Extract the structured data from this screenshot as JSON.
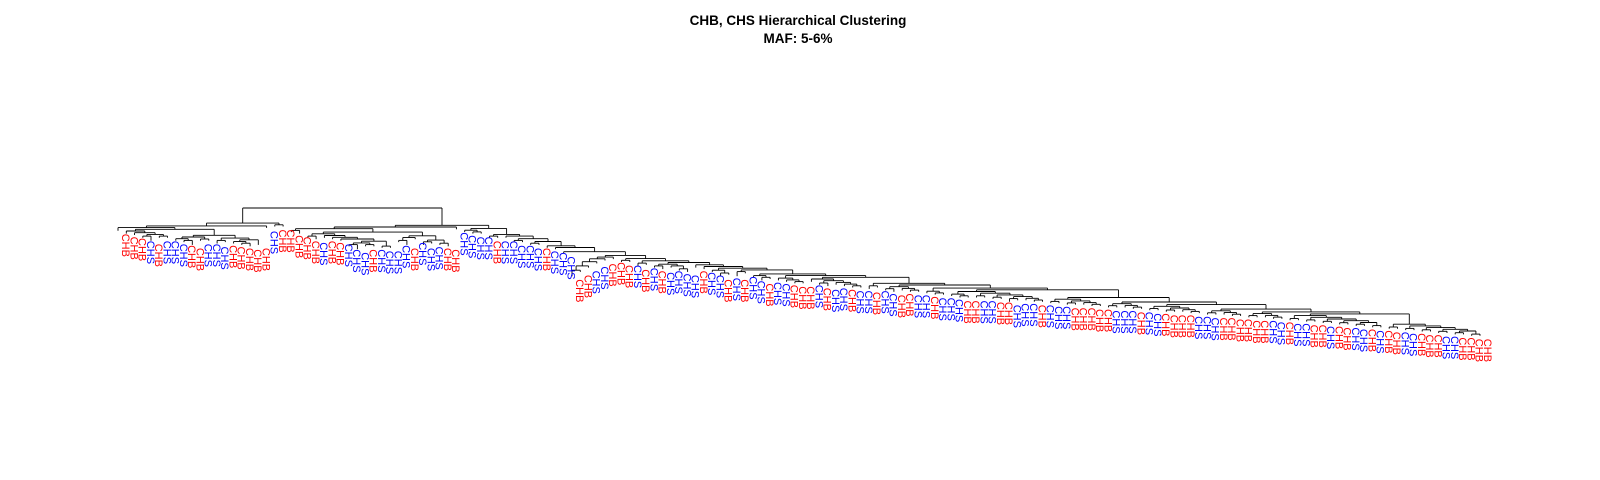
{
  "chart_data": {
    "type": "dendrogram",
    "title": "CHB, CHS Hierarchical Clustering",
    "subtitle": "MAF: 5-6%",
    "xlabel": "",
    "ylabel": "",
    "axes_shown": false,
    "groups": [
      {
        "name": "CHB",
        "color": "#ff0000"
      },
      {
        "name": "CHS",
        "color": "#0000ff"
      }
    ],
    "leaves": [
      "CHB",
      "CHB",
      "CHB",
      "CHS",
      "CHB",
      "CHS",
      "CHS",
      "CHS",
      "CHB",
      "CHB",
      "CHS",
      "CHS",
      "CHS",
      "CHB",
      "CHB",
      "CHB",
      "CHB",
      "CHB",
      "CHS",
      "CHB",
      "CHB",
      "CHB",
      "CHB",
      "CHB",
      "CHS",
      "CHB",
      "CHB",
      "CHS",
      "CHS",
      "CHS",
      "CHB",
      "CHS",
      "CHS",
      "CHS",
      "CHS",
      "CHB",
      "CHS",
      "CHS",
      "CHS",
      "CHB",
      "CHB",
      "CHS",
      "CHS",
      "CHS",
      "CHS",
      "CHB",
      "CHS",
      "CHS",
      "CHS",
      "CHS",
      "CHS",
      "CHB",
      "CHS",
      "CHS",
      "CHS",
      "CHB",
      "CHB",
      "CHS",
      "CHS",
      "CHB",
      "CHB",
      "CHB",
      "CHS",
      "CHB",
      "CHS",
      "CHB",
      "CHS",
      "CHS",
      "CHS",
      "CHS",
      "CHB",
      "CHS",
      "CHS",
      "CHB",
      "CHS",
      "CHB",
      "CHS",
      "CHS",
      "CHB",
      "CHS",
      "CHS",
      "CHB",
      "CHB",
      "CHB",
      "CHS",
      "CHB",
      "CHS",
      "CHS",
      "CHB",
      "CHS",
      "CHS",
      "CHB",
      "CHS",
      "CHS",
      "CHB",
      "CHB",
      "CHS",
      "CHS",
      "CHB",
      "CHS",
      "CHS",
      "CHS",
      "CHB",
      "CHB",
      "CHS",
      "CHS",
      "CHB",
      "CHB",
      "CHS",
      "CHS",
      "CHS",
      "CHB",
      "CHS",
      "CHS",
      "CHS",
      "CHB",
      "CHB",
      "CHB",
      "CHB",
      "CHB",
      "CHS",
      "CHS",
      "CHS",
      "CHB",
      "CHS",
      "CHS",
      "CHB",
      "CHB",
      "CHB",
      "CHB",
      "CHS",
      "CHS",
      "CHS",
      "CHB",
      "CHB",
      "CHB",
      "CHB",
      "CHB",
      "CHB",
      "CHS",
      "CHS",
      "CHB",
      "CHS",
      "CHS",
      "CHB",
      "CHB",
      "CHS",
      "CHB",
      "CHB",
      "CHS",
      "CHS",
      "CHB",
      "CHS",
      "CHB",
      "CHB",
      "CHS",
      "CHS",
      "CHB",
      "CHB",
      "CHB",
      "CHS",
      "CHS",
      "CHB",
      "CHB",
      "CHB",
      "CHB"
    ],
    "leaf_heights": [
      0.84,
      0.82,
      0.81,
      0.79,
      0.77,
      0.79,
      0.79,
      0.77,
      0.76,
      0.74,
      0.77,
      0.77,
      0.75,
      0.76,
      0.75,
      0.74,
      0.73,
      0.74,
      0.86,
      0.87,
      0.87,
      0.83,
      0.82,
      0.79,
      0.78,
      0.79,
      0.78,
      0.77,
      0.73,
      0.71,
      0.73,
      0.73,
      0.72,
      0.72,
      0.76,
      0.74,
      0.78,
      0.74,
      0.75,
      0.74,
      0.73,
      0.85,
      0.83,
      0.82,
      0.82,
      0.79,
      0.79,
      0.79,
      0.76,
      0.76,
      0.74,
      0.74,
      0.72,
      0.71,
      0.68,
      0.52,
      0.55,
      0.58,
      0.61,
      0.63,
      0.64,
      0.62,
      0.62,
      0.59,
      0.6,
      0.58,
      0.57,
      0.58,
      0.56,
      0.55,
      0.58,
      0.57,
      0.55,
      0.52,
      0.53,
      0.52,
      0.54,
      0.51,
      0.49,
      0.5,
      0.49,
      0.48,
      0.47,
      0.47,
      0.48,
      0.46,
      0.45,
      0.46,
      0.45,
      0.44,
      0.44,
      0.43,
      0.44,
      0.42,
      0.41,
      0.42,
      0.41,
      0.41,
      0.4,
      0.39,
      0.39,
      0.38,
      0.37,
      0.37,
      0.37,
      0.37,
      0.36,
      0.36,
      0.34,
      0.35,
      0.35,
      0.34,
      0.34,
      0.33,
      0.33,
      0.32,
      0.32,
      0.32,
      0.31,
      0.31,
      0.3,
      0.3,
      0.3,
      0.29,
      0.29,
      0.28,
      0.28,
      0.27,
      0.27,
      0.27,
      0.26,
      0.26,
      0.25,
      0.25,
      0.25,
      0.24,
      0.24,
      0.23,
      0.23,
      0.23,
      0.22,
      0.22,
      0.21,
      0.21,
      0.2,
      0.2,
      0.19,
      0.19,
      0.18,
      0.18,
      0.17,
      0.17,
      0.16,
      0.16,
      0.15,
      0.15,
      0.14,
      0.14,
      0.13,
      0.13,
      0.12,
      0.12,
      0.11,
      0.11,
      0.1,
      0.1
    ],
    "root_height": 1.0
  }
}
